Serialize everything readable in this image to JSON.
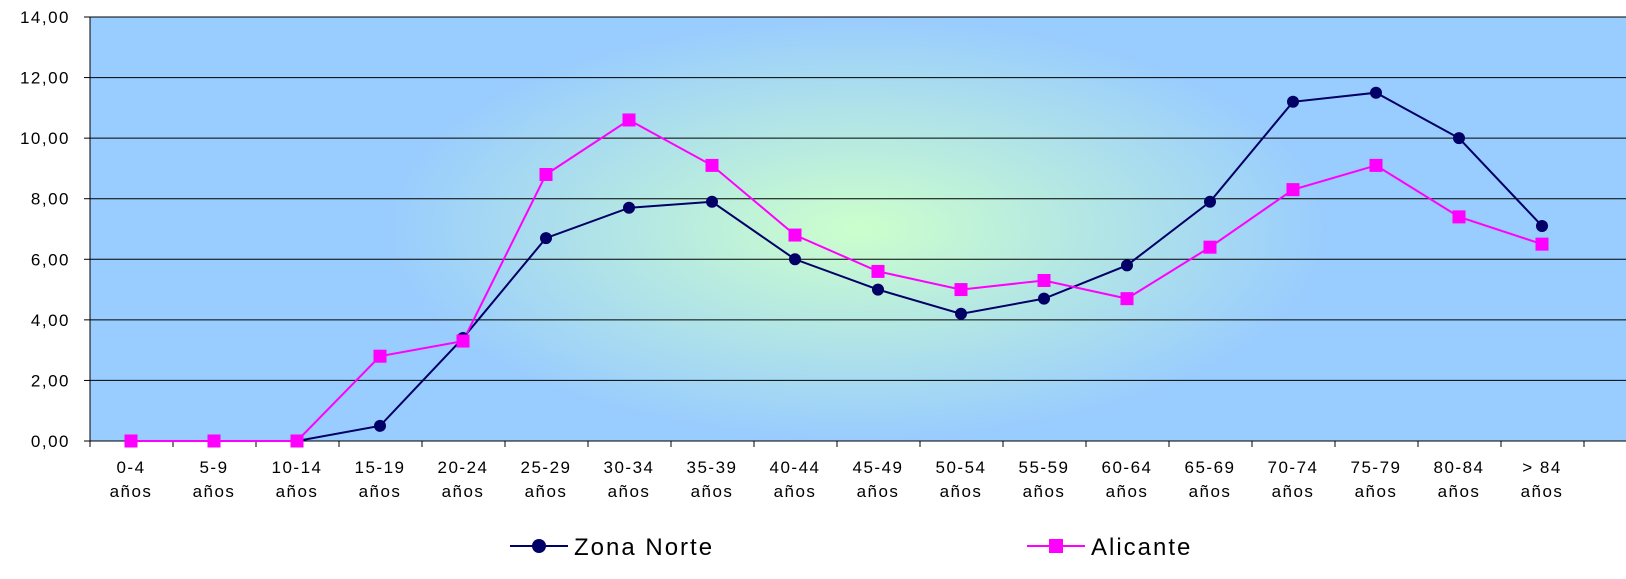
{
  "chart_data": {
    "type": "line",
    "categories": [
      [
        "0-4",
        "años"
      ],
      [
        "5-9",
        "años"
      ],
      [
        "10-14",
        "años"
      ],
      [
        "15-19",
        "años"
      ],
      [
        "20-24",
        "años"
      ],
      [
        "25-29",
        "años"
      ],
      [
        "30-34",
        "años"
      ],
      [
        "35-39",
        "años"
      ],
      [
        "40-44",
        "años"
      ],
      [
        "45-49",
        "años"
      ],
      [
        "50-54",
        "años"
      ],
      [
        "55-59",
        "años"
      ],
      [
        "60-64",
        "años"
      ],
      [
        "65-69",
        "años"
      ],
      [
        "70-74",
        "años"
      ],
      [
        "75-79",
        "años"
      ],
      [
        "80-84",
        "años"
      ],
      [
        "> 84",
        "años"
      ]
    ],
    "series": [
      {
        "name": "Zona Norte",
        "color": "#000066",
        "marker": "circle",
        "values": [
          0,
          0,
          0,
          0.5,
          3.4,
          6.7,
          7.7,
          7.9,
          6.0,
          5.0,
          4.2,
          4.7,
          5.8,
          7.9,
          11.2,
          11.5,
          10.0,
          7.1
        ]
      },
      {
        "name": "Alicante",
        "color": "#ff00ff",
        "marker": "square",
        "values": [
          0,
          0,
          0,
          2.8,
          3.3,
          8.8,
          10.6,
          9.1,
          6.8,
          5.6,
          5.0,
          5.3,
          4.7,
          6.4,
          8.3,
          9.1,
          7.4,
          6.5
        ]
      }
    ],
    "yticks": [
      "0,00",
      "2,00",
      "4,00",
      "6,00",
      "8,00",
      "10,00",
      "12,00",
      "14,00"
    ],
    "ylim": [
      0,
      14
    ],
    "grid": true,
    "legend_position": "bottom",
    "background": {
      "center": "#ccffcc",
      "edge": "#99ccff"
    }
  }
}
